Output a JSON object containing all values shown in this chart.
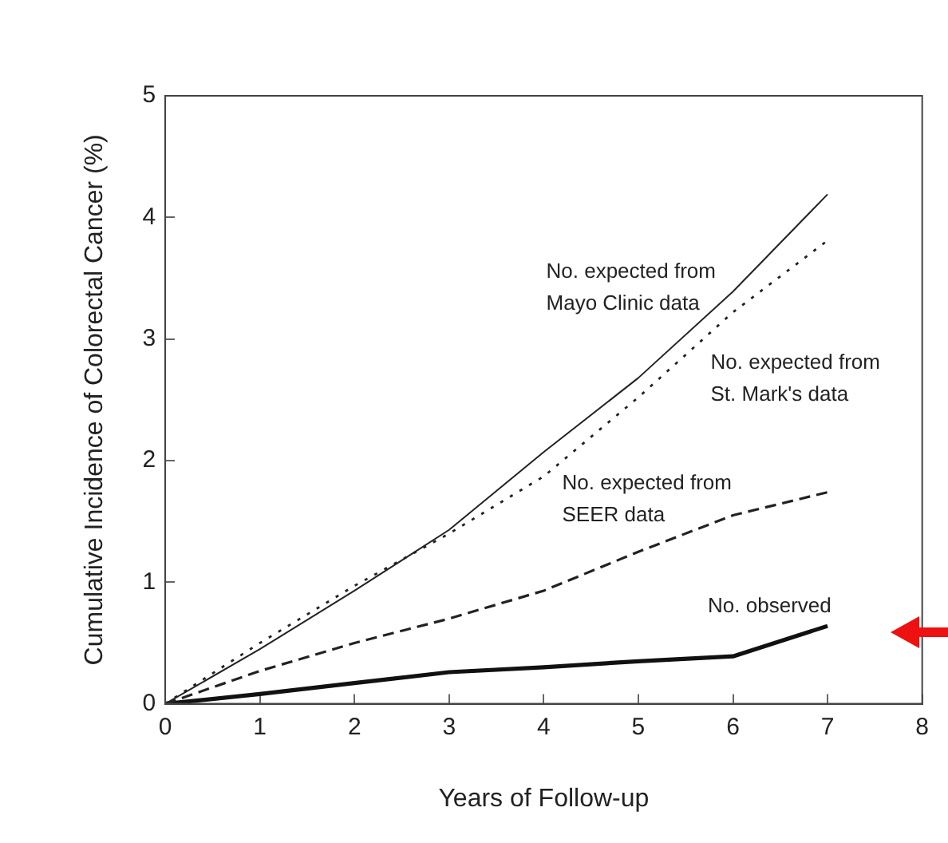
{
  "chart_data": {
    "type": "line",
    "xlabel": "Years of Follow-up",
    "ylabel": "Cumulative Incidence of Colorectal Cancer (%)",
    "x": [
      0,
      1,
      2,
      3,
      4,
      5,
      6,
      7
    ],
    "xlim": [
      0,
      8
    ],
    "xticks": [
      0,
      1,
      2,
      3,
      4,
      5,
      6,
      7,
      8
    ],
    "ylim": [
      0,
      5
    ],
    "yticks": [
      0,
      1,
      2,
      3,
      4,
      5
    ],
    "grid": false,
    "legend": false,
    "marker": "none",
    "series": [
      {
        "name": "No. expected from Mayo Clinic data",
        "color": "#222222",
        "line_style": "solid",
        "values": [
          0,
          0.45,
          0.93,
          1.43,
          2.07,
          2.68,
          3.39,
          4.19
        ]
      },
      {
        "name": "No. expected from St. Mark's data",
        "color": "#222222",
        "line_style": "dotted",
        "values": [
          0,
          0.5,
          0.97,
          1.4,
          1.87,
          2.52,
          3.22,
          3.81
        ]
      },
      {
        "name": "No. expected from SEER data",
        "color": "#222222",
        "line_style": "dashed",
        "values": [
          0,
          0.27,
          0.5,
          0.7,
          0.93,
          1.25,
          1.55,
          1.74
        ]
      },
      {
        "name": "No. observed",
        "color": "#111111",
        "line_style": "solid",
        "values": [
          0,
          0.08,
          0.17,
          0.26,
          0.3,
          0.35,
          0.39,
          0.64
        ]
      }
    ]
  }
}
